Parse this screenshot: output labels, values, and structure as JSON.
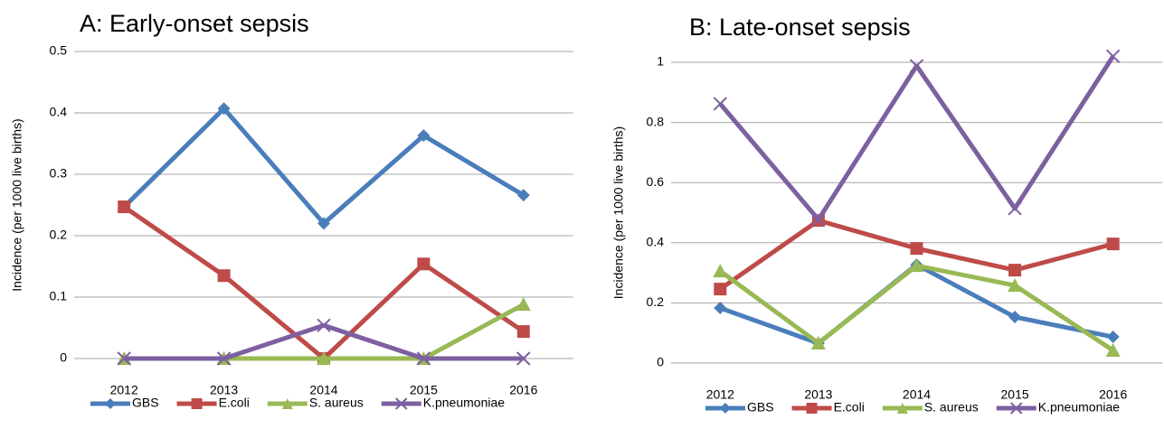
{
  "chart_data": [
    {
      "type": "line",
      "title": "A: Early-onset sepsis",
      "y_label": "Incidence (per 1000 live births)",
      "categories": [
        "2012",
        "2013",
        "2014",
        "2015",
        "2016"
      ],
      "ylim": [
        0,
        0.5
      ],
      "yticks": [
        0,
        0.1,
        0.2,
        0.3,
        0.4,
        0.5
      ],
      "grid": true,
      "legend": "bottom",
      "series": [
        {
          "name": "GBS",
          "color": "#4a7ebb",
          "marker": "diamond",
          "values": [
            0.247,
            0.407,
            0.22,
            0.363,
            0.266
          ]
        },
        {
          "name": "E.coli",
          "color": "#be4b48",
          "marker": "square",
          "values": [
            0.247,
            0.135,
            0,
            0.154,
            0.044
          ]
        },
        {
          "name": "S. aureus",
          "color": "#98b954",
          "marker": "triangle",
          "values": [
            0,
            0,
            0,
            0,
            0.088
          ]
        },
        {
          "name": "K.pneumoniae",
          "color": "#7d60a0",
          "marker": "x",
          "values": [
            0,
            0,
            0.054,
            0,
            0
          ]
        }
      ]
    },
    {
      "type": "line",
      "title": "B: Late-onset sepsis",
      "y_label": "Incidence (per 1000 live births)",
      "categories": [
        "2012",
        "2013",
        "2014",
        "2015",
        "2016"
      ],
      "ylim": [
        0,
        1
      ],
      "yticks": [
        0,
        0.2,
        0.4,
        0.6,
        0.8,
        1
      ],
      "grid": true,
      "legend": "bottom",
      "series": [
        {
          "name": "GBS",
          "color": "#4a7ebb",
          "marker": "diamond",
          "values": [
            0.183,
            0.066,
            0.327,
            0.153,
            0.087
          ]
        },
        {
          "name": "E.coli",
          "color": "#be4b48",
          "marker": "square",
          "values": [
            0.246,
            0.474,
            0.381,
            0.309,
            0.396
          ]
        },
        {
          "name": "S. aureus",
          "color": "#98b954",
          "marker": "triangle",
          "values": [
            0.306,
            0.066,
            0.324,
            0.258,
            0.042
          ]
        },
        {
          "name": "K.pneumoniae",
          "color": "#7d60a0",
          "marker": "x",
          "values": [
            0.862,
            0.477,
            0.988,
            0.514,
            1.02
          ]
        }
      ]
    }
  ]
}
